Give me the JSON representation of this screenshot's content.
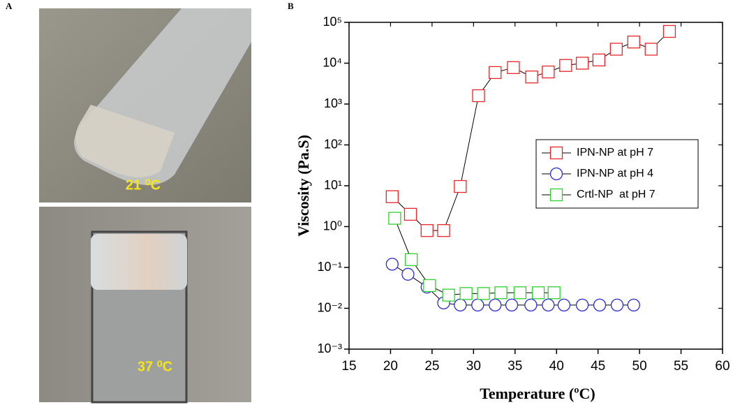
{
  "panel_a": {
    "label": "A",
    "photos": [
      {
        "caption": "21 ⁰C"
      },
      {
        "caption": "37 ⁰C"
      }
    ]
  },
  "chart_data": {
    "type": "scatter",
    "panel_label": "B",
    "x_label": "Temperature (ºC)",
    "y_label": "Viscosity (Pa.S)",
    "xlim": [
      15,
      60
    ],
    "xticks": [
      15,
      20,
      25,
      30,
      35,
      40,
      45,
      50,
      55,
      60
    ],
    "ylim": [
      0.001,
      100000
    ],
    "log_y": true,
    "yticks": [
      {
        "value": 0.001,
        "label": "10⁻³"
      },
      {
        "value": 0.01,
        "label": "10⁻²"
      },
      {
        "value": 0.1,
        "label": "10⁻¹"
      },
      {
        "value": 1,
        "label": "10⁰"
      },
      {
        "value": 10,
        "label": "10¹"
      },
      {
        "value": 100,
        "label": "10²"
      },
      {
        "value": 1000,
        "label": "10³"
      },
      {
        "value": 10000,
        "label": "10⁴"
      },
      {
        "value": 100000,
        "label": "10⁵"
      }
    ],
    "legend": "upper right",
    "series": [
      {
        "name": "IPN-NP at pH 7",
        "color": "#e8272a",
        "marker": "square",
        "x": [
          20.2,
          22.4,
          24.4,
          26.4,
          28.4,
          30.6,
          32.6,
          34.8,
          37.0,
          39.0,
          41.1,
          43.1,
          45.1,
          47.2,
          49.3,
          51.4,
          53.6
        ],
        "values": [
          5.4,
          2.0,
          0.8,
          0.8,
          9.6,
          1600,
          5900,
          7800,
          4600,
          6100,
          8800,
          10000,
          12000,
          22000,
          33000,
          22000,
          60000
        ]
      },
      {
        "name": "IPN-NP at pH 4",
        "color": "#2b2bd6",
        "marker": "circle",
        "x": [
          20.2,
          22.1,
          24.4,
          26.4,
          28.4,
          30.5,
          32.6,
          34.6,
          36.9,
          39.0,
          40.9,
          43.1,
          45.2,
          47.3,
          49.3
        ],
        "values": [
          0.12,
          0.068,
          0.033,
          0.0135,
          0.012,
          0.012,
          0.012,
          0.012,
          0.012,
          0.012,
          0.012,
          0.012,
          0.012,
          0.012,
          0.012
        ]
      },
      {
        "name": "Crtl-NP  at pH 7",
        "color": "#2fd12f",
        "marker": "square",
        "x": [
          20.5,
          22.5,
          24.7,
          27.0,
          29.1,
          31.2,
          33.3,
          35.6,
          37.8,
          39.7
        ],
        "values": [
          1.6,
          0.155,
          0.036,
          0.021,
          0.023,
          0.023,
          0.024,
          0.024,
          0.024,
          0.024
        ]
      }
    ]
  }
}
